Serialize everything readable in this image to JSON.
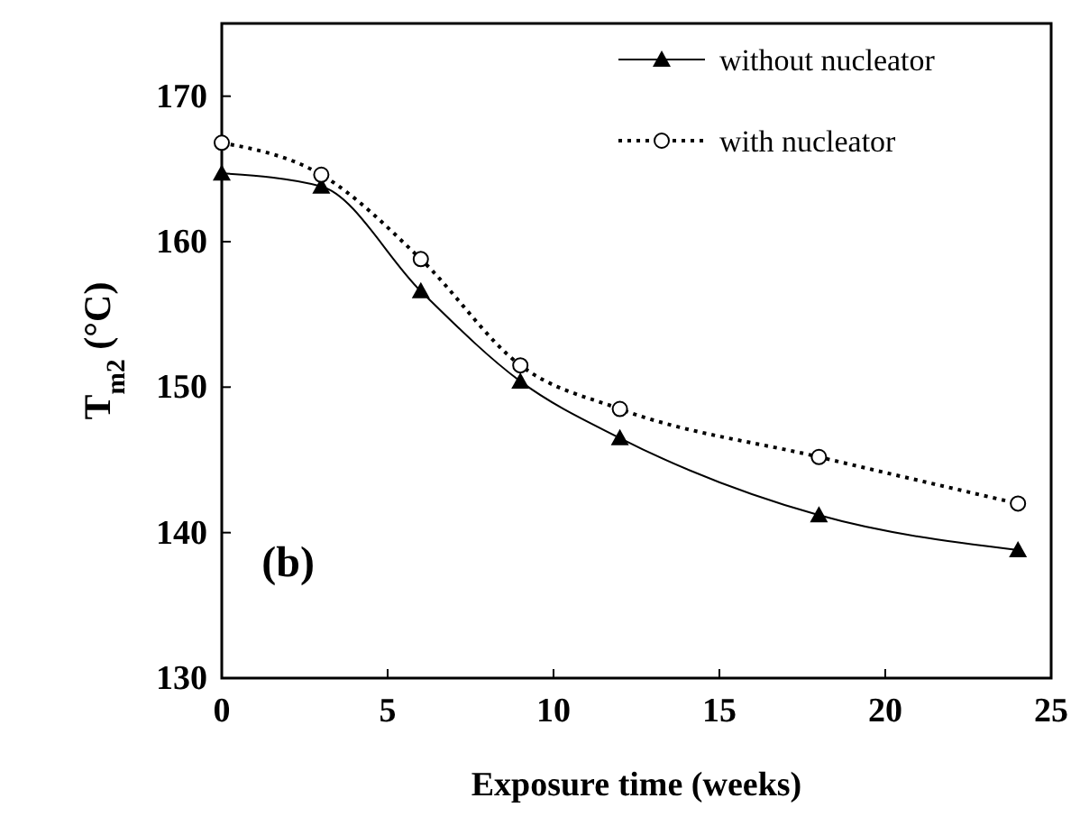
{
  "chart_data": {
    "type": "line",
    "xlabel": "Exposure time (weeks)",
    "ylabel": "T$_{m2}$ (°C)",
    "annotations": [
      "(b)"
    ],
    "x": [
      0,
      3,
      6,
      9,
      12,
      18,
      24
    ],
    "xlim": [
      0,
      25
    ],
    "xticks": [
      0,
      5,
      10,
      15,
      20,
      25
    ],
    "ylim": [
      130,
      175
    ],
    "yticks": [
      130,
      140,
      150,
      160,
      170
    ],
    "legend": "top right",
    "grid": false,
    "series": [
      {
        "name": "without nucleator",
        "color": "#000000",
        "marker": "triangle",
        "line_style": "solid",
        "values": [
          164.7,
          163.8,
          156.6,
          150.4,
          146.5,
          141.2,
          138.8
        ]
      },
      {
        "name": "with nucleator",
        "color": "#000000",
        "marker": "circle",
        "line_style": "dotted",
        "values": [
          166.8,
          164.6,
          158.8,
          151.5,
          148.5,
          145.2,
          142.0
        ]
      }
    ]
  }
}
